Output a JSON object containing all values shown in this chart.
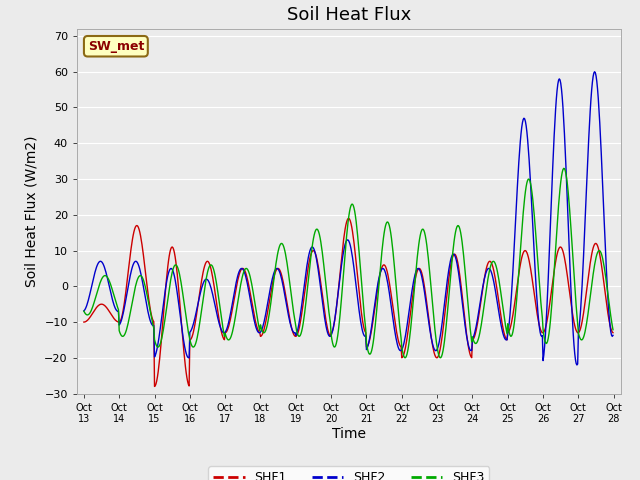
{
  "title": "Soil Heat Flux",
  "ylabel": "Soil Heat Flux (W/m2)",
  "xlabel": "Time",
  "ylim": [
    -30,
    72
  ],
  "yticks": [
    -30,
    -20,
    -10,
    0,
    10,
    20,
    30,
    40,
    50,
    60,
    70
  ],
  "xtick_labels": [
    "Oct 13",
    "Oct 14",
    "Oct 15",
    "Oct 16",
    "Oct 17",
    "Oct 18",
    "Oct 19",
    "Oct 20",
    "Oct 21",
    "Oct 22",
    "Oct 23",
    "Oct 24",
    "Oct 25",
    "Oct 26",
    "Oct 27",
    "Oct 28"
  ],
  "line_colors": {
    "SHF1": "#cc0000",
    "SHF2": "#0000cc",
    "SHF3": "#00aa00"
  },
  "legend_label": "SW_met",
  "plot_bg_color": "#ebebeb",
  "grid_color": "#ffffff",
  "title_fontsize": 13,
  "axis_label_fontsize": 10,
  "tick_fontsize": 8,
  "shf1_peaks": [
    -5,
    17,
    11,
    7,
    5,
    5,
    10,
    19,
    6,
    5,
    9,
    7,
    10,
    11,
    12
  ],
  "shf1_troughs": [
    -10,
    -10,
    -28,
    -15,
    -13,
    -14,
    -14,
    -13,
    -17,
    -20,
    -20,
    -15,
    -13,
    -13,
    -13
  ],
  "shf2_peaks": [
    7,
    7,
    5,
    2,
    5,
    5,
    11,
    13,
    5,
    5,
    9,
    5,
    47,
    58,
    60
  ],
  "shf2_troughs": [
    -7,
    -11,
    -20,
    -13,
    -13,
    -13,
    -14,
    -14,
    -18,
    -18,
    -18,
    -15,
    -14,
    -22,
    -14
  ],
  "shf3_peaks": [
    3,
    3,
    6,
    6,
    5,
    12,
    16,
    23,
    18,
    16,
    17,
    7,
    30,
    33,
    10
  ],
  "shf3_troughs": [
    -8,
    -14,
    -17,
    -17,
    -15,
    -13,
    -14,
    -17,
    -19,
    -20,
    -20,
    -16,
    -14,
    -16,
    -15
  ],
  "shf1_phase": -0.25,
  "shf2_phase": -0.22,
  "shf3_phase": -0.35,
  "pts_per_day": 48,
  "days": 15
}
